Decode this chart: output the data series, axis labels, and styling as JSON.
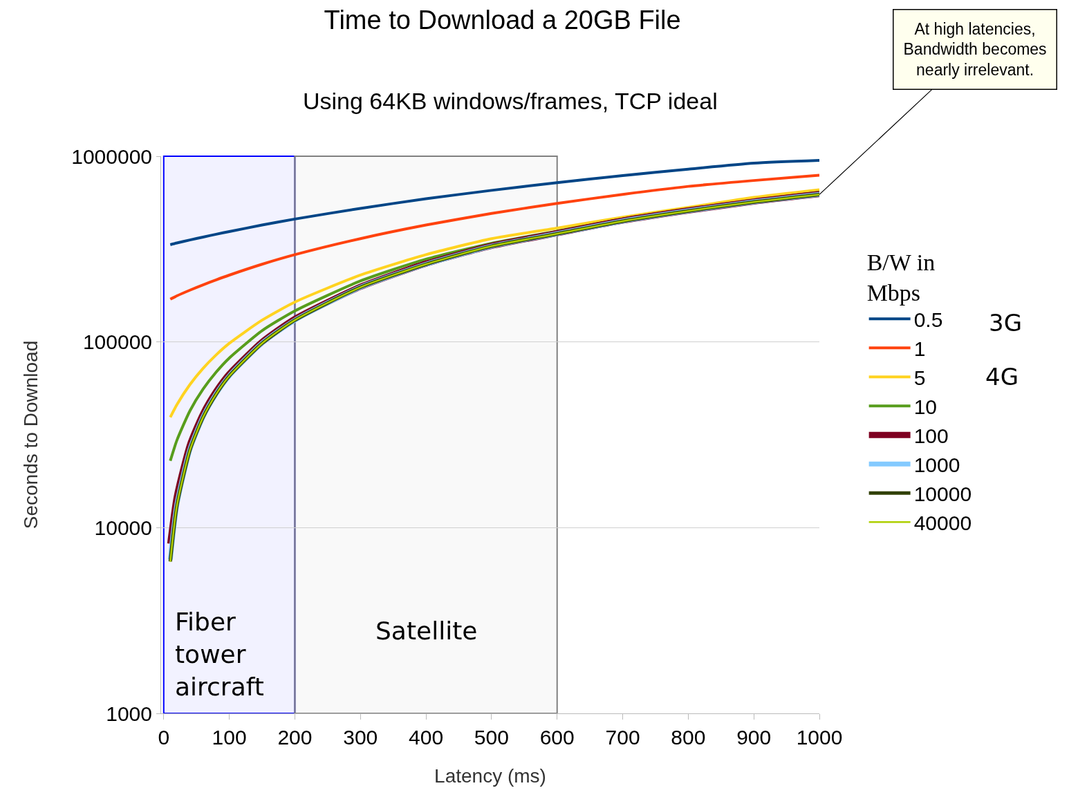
{
  "chart_data": {
    "type": "line",
    "title": "Time to Download a 20GB File",
    "subtitle": "Using 64KB windows/frames, TCP ideal",
    "xlabel": "Latency (ms)",
    "ylabel": "Seconds to Download",
    "legend_title": "B/W in Mbps",
    "x": [
      10,
      20,
      40,
      60,
      80,
      100,
      150,
      200,
      300,
      400,
      500,
      600,
      700,
      800,
      900,
      1000
    ],
    "series": [
      {
        "name": "0.5",
        "color": "#004586",
        "values": [
          334000,
          341000,
          354000,
          367000,
          380000,
          393000,
          426000,
          459000,
          524000,
          590000,
          655000,
          721000,
          786000,
          852000,
          918000,
          950000
        ]
      },
      {
        "name": "1",
        "color": "#ff420e",
        "values": [
          170000,
          177000,
          190000,
          203000,
          216000,
          229000,
          262000,
          295000,
          360000,
          426000,
          492000,
          557000,
          623000,
          688000,
          740000,
          790000
        ]
      },
      {
        "name": "5",
        "color": "#ffd320",
        "values": [
          39300,
          45900,
          59000,
          72100,
          85200,
          98300,
          131000,
          164000,
          229000,
          295000,
          360000,
          410000,
          470000,
          530000,
          600000,
          660000
        ]
      },
      {
        "name": "10",
        "color": "#579d1c",
        "values": [
          22900,
          29500,
          42600,
          55700,
          68800,
          81900,
          115000,
          147000,
          213000,
          279000,
          340000,
          395000,
          460000,
          520000,
          580000,
          640000
        ]
      },
      {
        "name": "100",
        "color": "#7e0021",
        "values": [
          8190,
          14700,
          27900,
          41000,
          54100,
          67200,
          99900,
          133000,
          198000,
          264000,
          329000,
          385000,
          450000,
          510000,
          570000,
          625000
        ]
      },
      {
        "name": "1000",
        "color": "#83caff",
        "values": [
          6720,
          13300,
          26400,
          39500,
          52600,
          65700,
          98500,
          131000,
          197000,
          262000,
          328000,
          383000,
          448000,
          508000,
          568000,
          623000
        ]
      },
      {
        "name": "10000",
        "color": "#314004",
        "values": [
          6570,
          13100,
          26200,
          39300,
          52400,
          65600,
          98300,
          131000,
          197000,
          262000,
          328000,
          382000,
          447000,
          507000,
          567000,
          622000
        ]
      },
      {
        "name": "40000",
        "color": "#aecf00",
        "values": [
          6560,
          13100,
          26200,
          39300,
          52400,
          65500,
          98300,
          131000,
          197000,
          262000,
          328000,
          382000,
          447000,
          507000,
          567000,
          622000
        ]
      }
    ],
    "xlim": [
      0,
      1000
    ],
    "xticks": [
      0,
      100,
      200,
      300,
      400,
      500,
      600,
      700,
      800,
      900,
      1000
    ],
    "ylim": [
      1000,
      1000000
    ],
    "yticks": [
      1000,
      10000,
      100000,
      1000000
    ],
    "log": "y",
    "grid": "y",
    "legend": "right",
    "marker": "none",
    "line_style": "solid",
    "bands": [
      {
        "axis": "x",
        "from": 0,
        "to": 200,
        "label": "Fiber\ntower\naircraft",
        "color": "#0000ff"
      },
      {
        "axis": "x",
        "from": 200,
        "to": 600,
        "label": "Satellite",
        "color": "#808080"
      }
    ],
    "annotations": [
      {
        "text": "At high latencies,\nBandwidth becomes\nnearly irrelevant.",
        "x": 1000,
        "y": 622000
      },
      "3G",
      "4G"
    ]
  }
}
